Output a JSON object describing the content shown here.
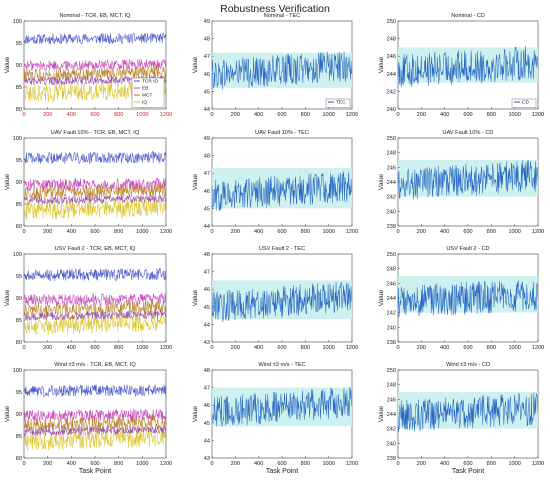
{
  "figure": {
    "title": "Robustness Verification"
  },
  "colors": {
    "tcr": "#3f4ec9",
    "eb": "#c23bb8",
    "mct": "#b5781c",
    "iq": "#d9c223",
    "extra": "#8e44ad",
    "tec": "#1f5fbf",
    "cd": "#1f5fbf",
    "band": "#c9f0ee",
    "band_dark": "#2a8fa8"
  },
  "chart_data": [
    {
      "type": "line",
      "title": "Nominal - TCR, EB, MCT, IQ",
      "xlabel": "",
      "ylabel": "Value",
      "xlim": [
        0,
        1200
      ],
      "ylim": [
        80,
        100
      ],
      "xticks": [
        0,
        200,
        400,
        600,
        800,
        1000,
        1200
      ],
      "yticks": [
        80,
        85,
        90,
        95,
        100
      ],
      "xtick_color": "#cc2222",
      "legend": [
        "TCR IO",
        "EB",
        "MCT",
        "IQ"
      ],
      "legend_loc": "bottom-right",
      "series": [
        {
          "name": "TCR IO",
          "key": "tcr",
          "mean": 96,
          "amp": 0.8,
          "trend": 0.2
        },
        {
          "name": "EB",
          "key": "eb",
          "mean": 90,
          "amp": 0.8,
          "trend": 0.3
        },
        {
          "name": "MCT",
          "key": "mct",
          "mean": 88,
          "amp": 1.0,
          "trend": 0.8
        },
        {
          "name": "IQ",
          "key": "iq",
          "mean": 84,
          "amp": 1.4,
          "trend": 1.0
        },
        {
          "key": "extra",
          "mean": 86.5,
          "amp": 0.6,
          "trend": 0.5
        }
      ]
    },
    {
      "type": "line",
      "title": "Nominal - TEC",
      "xlabel": "",
      "ylabel": "Value",
      "xlim": [
        0,
        1200
      ],
      "ylim": [
        44,
        49
      ],
      "xticks": [
        0,
        200,
        400,
        600,
        800,
        1000,
        1200
      ],
      "yticks": [
        44,
        45,
        46,
        47,
        48,
        49
      ],
      "legend": [
        "TEC"
      ],
      "legend_loc": "bottom-right",
      "band": [
        45.2,
        47.2
      ],
      "series": [
        {
          "name": "TEC",
          "key": "tec",
          "mean": 46.2,
          "amp": 0.6,
          "trend": 0.5
        }
      ]
    },
    {
      "type": "line",
      "title": "Nominal - CD",
      "xlabel": "",
      "ylabel": "Value",
      "xlim": [
        0,
        1200
      ],
      "ylim": [
        240,
        250
      ],
      "xticks": [
        0,
        200,
        400,
        600,
        800,
        1000,
        1200
      ],
      "yticks": [
        240,
        242,
        244,
        246,
        248,
        250
      ],
      "legend": [
        "CD"
      ],
      "legend_loc": "bottom-right",
      "band": [
        243,
        247
      ],
      "series": [
        {
          "name": "CD",
          "key": "cd",
          "mean": 244.8,
          "amp": 1.3,
          "trend": 1.0
        }
      ]
    },
    {
      "type": "line",
      "title": "UAV Fault 10% - TCR, EB, MCT, IQ",
      "xlabel": "",
      "ylabel": "Value",
      "xlim": [
        0,
        1200
      ],
      "ylim": [
        80,
        100
      ],
      "xticks": [
        0,
        200,
        400,
        600,
        800,
        1000,
        1200
      ],
      "yticks": [
        80,
        85,
        90,
        95,
        100
      ],
      "series": [
        {
          "key": "tcr",
          "mean": 95.5,
          "amp": 0.9,
          "trend": 0.2
        },
        {
          "key": "eb",
          "mean": 89.5,
          "amp": 0.9,
          "trend": 0.3
        },
        {
          "key": "mct",
          "mean": 87.8,
          "amp": 1.1,
          "trend": 0.8
        },
        {
          "key": "iq",
          "mean": 84,
          "amp": 1.5,
          "trend": 1.0
        },
        {
          "key": "extra",
          "mean": 86,
          "amp": 0.6,
          "trend": 0.5
        }
      ]
    },
    {
      "type": "line",
      "title": "UAV Fault 10% - TEC",
      "xlabel": "",
      "ylabel": "Value",
      "xlim": [
        0,
        1200
      ],
      "ylim": [
        44,
        49
      ],
      "xticks": [
        0,
        200,
        400,
        600,
        800,
        1000,
        1200
      ],
      "yticks": [
        44,
        45,
        46,
        47,
        48,
        49
      ],
      "band": [
        45,
        47.3
      ],
      "series": [
        {
          "key": "tec",
          "mean": 46.0,
          "amp": 0.6,
          "trend": 0.5
        }
      ]
    },
    {
      "type": "line",
      "title": "UAV Fault 10% - CD",
      "xlabel": "",
      "ylabel": "Value",
      "xlim": [
        0,
        1200
      ],
      "ylim": [
        238,
        250
      ],
      "xticks": [
        0,
        200,
        400,
        600,
        800,
        1000,
        1200
      ],
      "yticks": [
        238,
        240,
        242,
        244,
        246,
        248,
        250
      ],
      "band": [
        242,
        247
      ],
      "series": [
        {
          "key": "cd",
          "mean": 244.3,
          "amp": 1.5,
          "trend": 1.2
        }
      ]
    },
    {
      "type": "line",
      "title": "USV Fault 2 - TCR, EB, MCT, IQ",
      "xlabel": "",
      "ylabel": "Value",
      "xlim": [
        0,
        1200
      ],
      "ylim": [
        80,
        100
      ],
      "xticks": [
        0,
        200,
        400,
        600,
        800,
        1000,
        1200
      ],
      "yticks": [
        80,
        85,
        90,
        95,
        100
      ],
      "series": [
        {
          "key": "tcr",
          "mean": 95.3,
          "amp": 0.9,
          "trend": 0.2
        },
        {
          "key": "eb",
          "mean": 89.6,
          "amp": 0.9,
          "trend": 0.3
        },
        {
          "key": "mct",
          "mean": 87.5,
          "amp": 1.1,
          "trend": 0.8
        },
        {
          "key": "iq",
          "mean": 84.2,
          "amp": 1.5,
          "trend": 1.0
        },
        {
          "key": "extra",
          "mean": 86,
          "amp": 0.6,
          "trend": 0.5
        }
      ]
    },
    {
      "type": "line",
      "title": "USV Fault 2 - TEC",
      "xlabel": "",
      "ylabel": "Value",
      "xlim": [
        0,
        1200
      ],
      "ylim": [
        43,
        48
      ],
      "xticks": [
        0,
        200,
        400,
        600,
        800,
        1000,
        1200
      ],
      "yticks": [
        43,
        44,
        45,
        46,
        47,
        48
      ],
      "band": [
        44.3,
        46.5
      ],
      "series": [
        {
          "key": "tec",
          "mean": 45.3,
          "amp": 0.6,
          "trend": 0.6
        }
      ]
    },
    {
      "type": "line",
      "title": "USV Fault 2 - CD",
      "xlabel": "",
      "ylabel": "Value",
      "xlim": [
        0,
        1200
      ],
      "ylim": [
        238,
        250
      ],
      "xticks": [
        0,
        200,
        400,
        600,
        800,
        1000,
        1200
      ],
      "yticks": [
        238,
        240,
        242,
        244,
        246,
        248,
        250
      ],
      "band": [
        242,
        247
      ],
      "series": [
        {
          "key": "cd",
          "mean": 244.0,
          "amp": 1.5,
          "trend": 1.0
        }
      ]
    },
    {
      "type": "line",
      "title": "Wind ±3 m/s - TCR, EB, MCT, IQ",
      "xlabel": "Task Point",
      "ylabel": "Value",
      "xlim": [
        0,
        1200
      ],
      "ylim": [
        80,
        100
      ],
      "xticks": [
        0,
        200,
        400,
        600,
        800,
        1000,
        1200
      ],
      "yticks": [
        80,
        85,
        90,
        95,
        100
      ],
      "series": [
        {
          "key": "tcr",
          "mean": 95.3,
          "amp": 0.9,
          "trend": 0.2
        },
        {
          "key": "eb",
          "mean": 89.7,
          "amp": 0.9,
          "trend": 0.3
        },
        {
          "key": "mct",
          "mean": 87.8,
          "amp": 1.1,
          "trend": 0.8
        },
        {
          "key": "iq",
          "mean": 84.3,
          "amp": 1.5,
          "trend": 1.0
        },
        {
          "key": "extra",
          "mean": 86.2,
          "amp": 0.6,
          "trend": 0.5
        }
      ]
    },
    {
      "type": "line",
      "title": "Wind ±3 m/s - TEC",
      "xlabel": "Task Point",
      "ylabel": "Value",
      "xlim": [
        0,
        1200
      ],
      "ylim": [
        43,
        48
      ],
      "xticks": [
        0,
        200,
        400,
        600,
        800,
        1000,
        1200
      ],
      "yticks": [
        43,
        44,
        45,
        46,
        47,
        48
      ],
      "band": [
        44.8,
        47
      ],
      "series": [
        {
          "key": "tec",
          "mean": 45.9,
          "amp": 0.6,
          "trend": 0.6
        }
      ]
    },
    {
      "type": "line",
      "title": "Wind ±3 m/s - CD",
      "xlabel": "Task Point",
      "ylabel": "Value",
      "xlim": [
        0,
        1200
      ],
      "ylim": [
        238,
        250
      ],
      "xticks": [
        0,
        200,
        400,
        600,
        800,
        1000,
        1200
      ],
      "yticks": [
        238,
        240,
        242,
        244,
        246,
        248,
        250
      ],
      "band": [
        242,
        247
      ],
      "series": [
        {
          "key": "cd",
          "mean": 244.2,
          "amp": 1.5,
          "trend": 1.0
        }
      ]
    }
  ]
}
